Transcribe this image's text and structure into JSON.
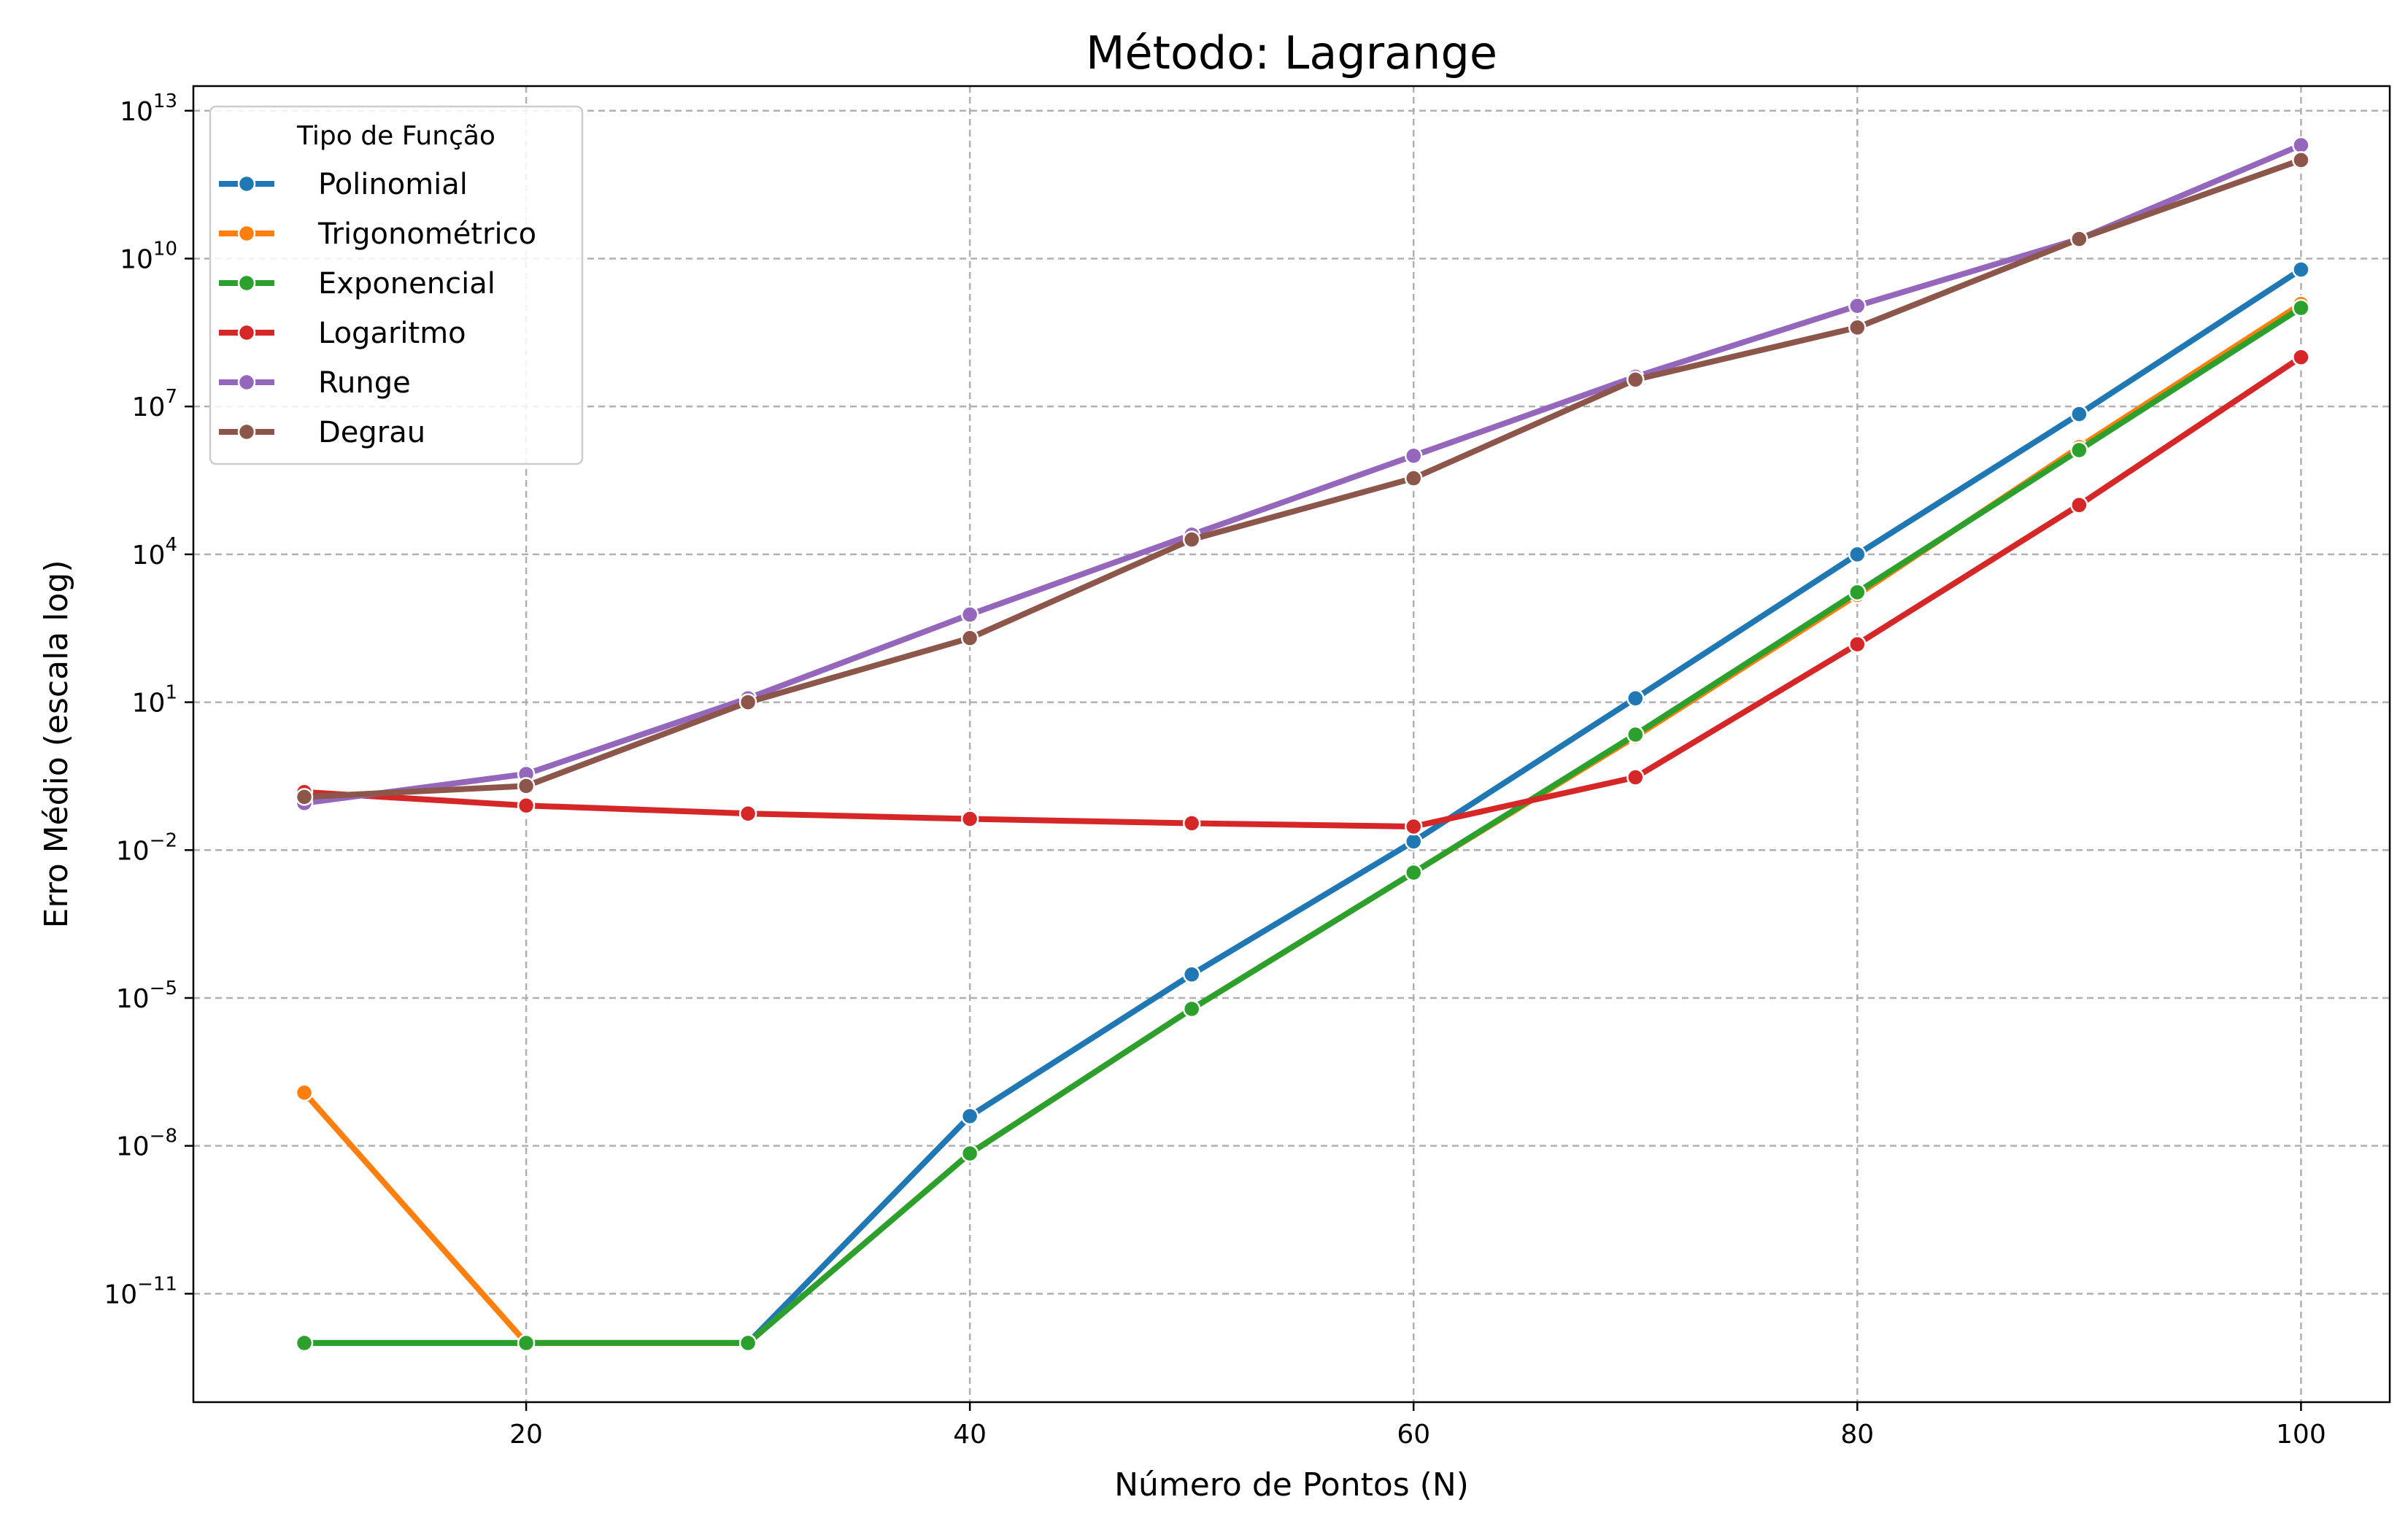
{
  "chart_data": {
    "type": "line",
    "title": "Método: Lagrange",
    "xlabel": "Número de Pontos (N)",
    "ylabel": "Erro Médio (escala log)",
    "x": [
      10,
      20,
      30,
      40,
      50,
      60,
      70,
      80,
      90,
      100
    ],
    "xlim": [
      5,
      104
    ],
    "xticks": [
      20,
      40,
      60,
      80,
      100
    ],
    "yscale": "log",
    "ylim_exp": [
      -13.2,
      13.5
    ],
    "yticks_exp": [
      -11,
      -8,
      -5,
      -2,
      1,
      4,
      7,
      10,
      13
    ],
    "grid": true,
    "legend": {
      "title": "Tipo de Função",
      "placement": "top-left"
    },
    "series": [
      {
        "name": "Polinomial",
        "color": "#1f77b4",
        "values": [
          1e-12,
          1e-12,
          1e-12,
          4e-08,
          3e-05,
          0.015,
          12,
          10000,
          7000000,
          6000000000.0
        ]
      },
      {
        "name": "Trigonométrico",
        "color": "#ff7f0e",
        "values": [
          1.2e-07,
          1e-12,
          1e-12,
          7e-09,
          6e-06,
          0.0035,
          2,
          1500,
          1500000,
          1200000000.0
        ]
      },
      {
        "name": "Exponencial",
        "color": "#2ca02c",
        "values": [
          1e-12,
          1e-12,
          1e-12,
          7e-09,
          6e-06,
          0.0035,
          2.2,
          1700,
          1300000,
          1000000000.0
        ]
      },
      {
        "name": "Logaritmo",
        "color": "#d62728",
        "values": [
          0.15,
          0.08,
          0.055,
          0.043,
          0.035,
          0.03,
          0.3,
          150,
          100000,
          100000000
        ]
      },
      {
        "name": "Runge",
        "color": "#9467bd",
        "values": [
          0.09,
          0.35,
          12,
          600,
          25000,
          1000000,
          40000000,
          1100000000,
          25000000000,
          2000000000000
        ]
      },
      {
        "name": "Degrau",
        "color": "#8c564b",
        "values": [
          0.12,
          0.2,
          10,
          200,
          20000,
          350000,
          35000000,
          400000000,
          25000000000,
          1000000000000
        ]
      }
    ]
  }
}
